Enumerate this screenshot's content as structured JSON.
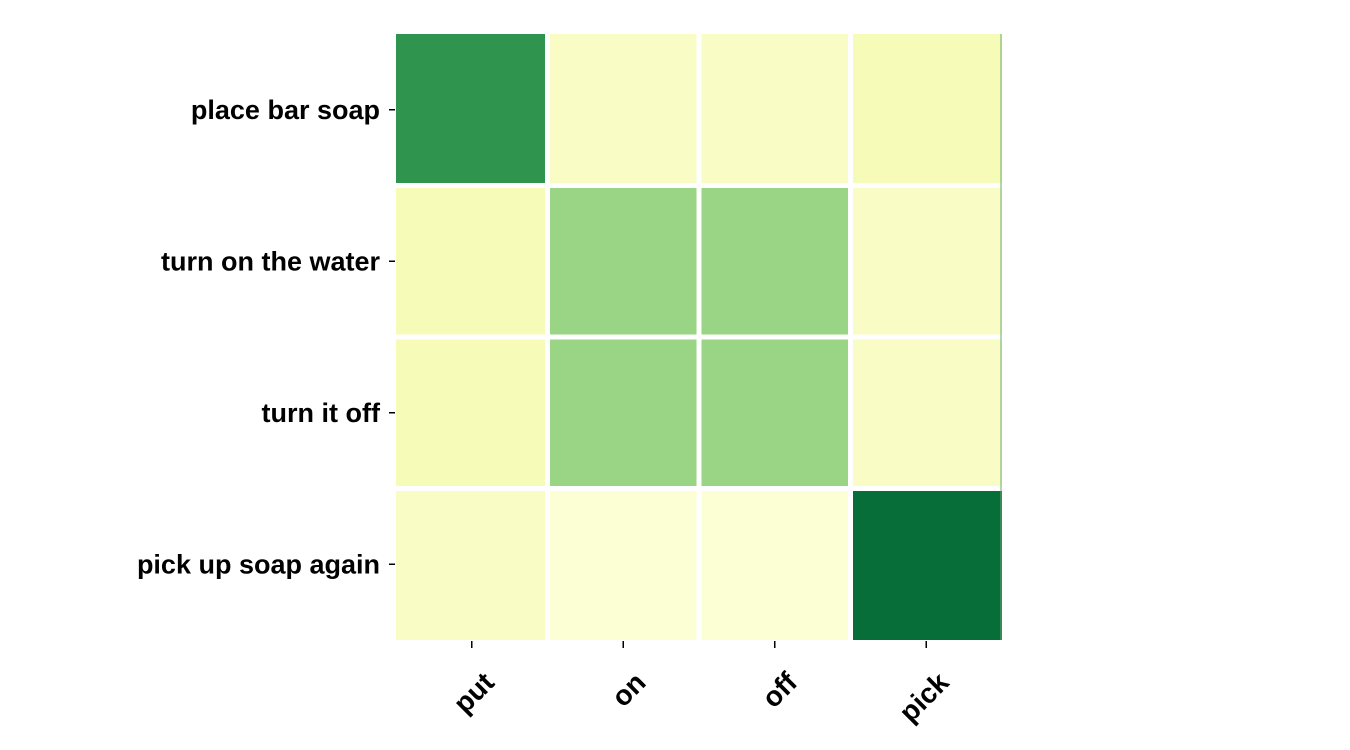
{
  "chart_data": {
    "type": "heatmap",
    "rows": [
      "place bar soap",
      "turn on the water",
      "turn it off",
      "pick up soap again"
    ],
    "columns": [
      "put",
      "on",
      "off",
      "pick"
    ],
    "values": [
      [
        0.7,
        0.09,
        0.09,
        0.13
      ],
      [
        0.13,
        0.42,
        0.42,
        0.09
      ],
      [
        0.13,
        0.42,
        0.42,
        0.09
      ],
      [
        0.09,
        0.05,
        0.05,
        0.85
      ]
    ],
    "colormap": "YlGn",
    "value_range": [
      0,
      1
    ],
    "grid": false,
    "legend": "none",
    "cell_separator_color": "#ffffff"
  }
}
